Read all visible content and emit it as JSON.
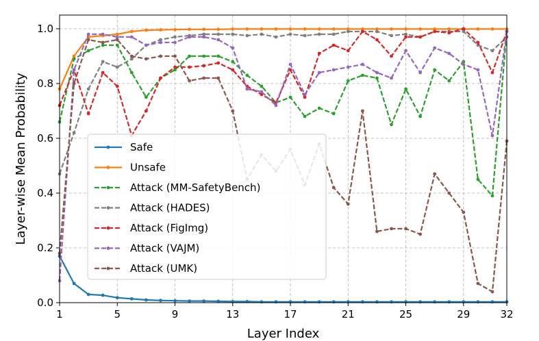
{
  "chart_data": {
    "type": "line",
    "title": "",
    "xlabel": "Layer Index",
    "ylabel": "Layer-wise Mean Probability",
    "xlim": [
      1,
      32
    ],
    "ylim": [
      0,
      1.05
    ],
    "xticks": [
      1,
      5,
      9,
      13,
      17,
      21,
      25,
      29,
      32
    ],
    "yticks": [
      0.0,
      0.2,
      0.4,
      0.6,
      0.8,
      1.0
    ],
    "ytick_labels": [
      "0.0",
      "0.2",
      "0.4",
      "0.6",
      "0.8",
      "1.0"
    ],
    "grid": true,
    "legend_position": "center-left",
    "x": [
      1,
      2,
      3,
      4,
      5,
      6,
      7,
      8,
      9,
      10,
      11,
      12,
      13,
      14,
      15,
      16,
      17,
      18,
      19,
      20,
      21,
      22,
      23,
      24,
      25,
      26,
      27,
      28,
      29,
      30,
      31,
      32
    ],
    "series": [
      {
        "name": "Safe",
        "color": "#1f77b4",
        "style": "solid",
        "values": [
          0.17,
          0.07,
          0.03,
          0.027,
          0.018,
          0.014,
          0.01,
          0.008,
          0.007,
          0.006,
          0.006,
          0.005,
          0.004,
          0.004,
          0.003,
          0.003,
          0.003,
          0.003,
          0.003,
          0.003,
          0.003,
          0.003,
          0.003,
          0.003,
          0.003,
          0.003,
          0.003,
          0.003,
          0.003,
          0.003,
          0.003,
          0.003
        ]
      },
      {
        "name": "Unsafe",
        "color": "#ff7f0e",
        "style": "solid",
        "values": [
          0.78,
          0.9,
          0.97,
          0.975,
          0.98,
          0.99,
          0.995,
          0.996,
          0.997,
          0.998,
          0.998,
          0.998,
          0.999,
          0.999,
          0.999,
          0.999,
          0.999,
          0.999,
          0.999,
          0.999,
          0.999,
          0.999,
          0.999,
          0.999,
          0.999,
          0.999,
          0.999,
          0.999,
          0.999,
          0.999,
          0.999,
          0.999
        ]
      },
      {
        "name": "Attack (MM-SafetyBench)",
        "color": "#2ca02c",
        "style": "dashed",
        "values": [
          0.66,
          0.89,
          0.92,
          0.94,
          0.94,
          0.84,
          0.75,
          0.82,
          0.85,
          0.9,
          0.9,
          0.9,
          0.88,
          0.83,
          0.79,
          0.73,
          0.75,
          0.68,
          0.71,
          0.69,
          0.81,
          0.83,
          0.82,
          0.65,
          0.78,
          0.68,
          0.85,
          0.81,
          0.88,
          0.45,
          0.39,
          0.99
        ]
      },
      {
        "name": "Attack (HADES)",
        "color": "#7f7f7f",
        "style": "dashed",
        "values": [
          0.47,
          0.62,
          0.78,
          0.88,
          0.86,
          0.89,
          0.94,
          0.96,
          0.97,
          0.975,
          0.98,
          0.98,
          0.98,
          0.975,
          0.98,
          0.97,
          0.98,
          0.975,
          0.98,
          0.98,
          0.99,
          0.99,
          0.99,
          0.975,
          0.98,
          0.97,
          0.99,
          0.99,
          0.99,
          0.94,
          0.92,
          0.97
        ]
      },
      {
        "name": "Attack (FigImg)",
        "color": "#d62728",
        "style": "dashed",
        "values": [
          0.72,
          0.85,
          0.69,
          0.84,
          0.79,
          0.61,
          0.7,
          0.82,
          0.86,
          0.86,
          0.865,
          0.875,
          0.85,
          0.79,
          0.76,
          0.73,
          0.85,
          0.75,
          0.91,
          0.94,
          0.92,
          0.99,
          0.96,
          0.9,
          0.97,
          0.97,
          0.99,
          0.985,
          1.0,
          0.95,
          0.84,
          0.99
        ]
      },
      {
        "name": "Attack (VAJM)",
        "color": "#9467bd",
        "style": "dashed",
        "values": [
          0.08,
          0.85,
          0.98,
          0.98,
          0.97,
          0.97,
          0.94,
          0.95,
          0.95,
          0.97,
          0.97,
          0.96,
          0.93,
          0.78,
          0.77,
          0.72,
          0.87,
          0.76,
          0.84,
          0.85,
          0.86,
          0.87,
          0.84,
          0.82,
          0.92,
          0.84,
          0.93,
          0.91,
          0.87,
          0.85,
          0.61,
          0.99
        ]
      },
      {
        "name": "Attack (UMK)",
        "color": "#8c564b",
        "style": "dashed",
        "values": [
          0.18,
          0.8,
          0.96,
          0.95,
          0.96,
          0.9,
          0.89,
          0.9,
          0.9,
          0.81,
          0.82,
          0.82,
          0.7,
          0.45,
          0.54,
          0.48,
          0.56,
          0.43,
          0.58,
          0.42,
          0.36,
          0.7,
          0.26,
          0.27,
          0.27,
          0.25,
          0.47,
          0.4,
          0.33,
          0.07,
          0.04,
          0.59
        ]
      }
    ]
  }
}
